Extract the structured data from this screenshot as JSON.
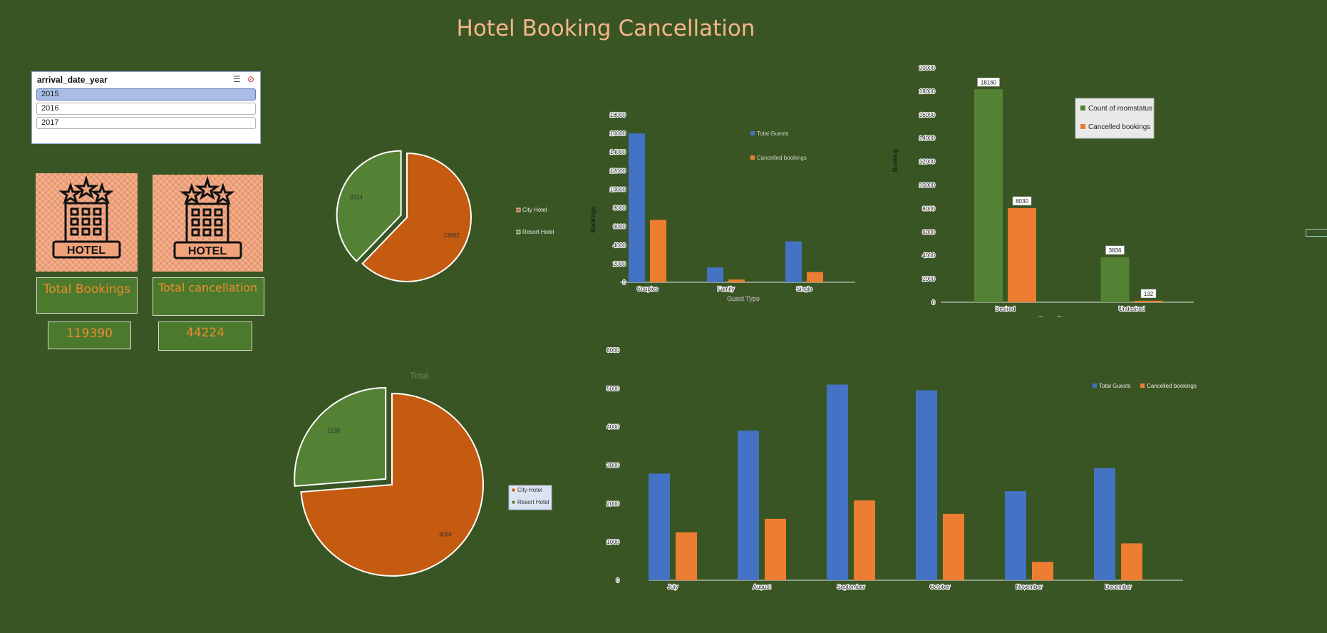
{
  "page": {
    "title": "Hotel Booking Cancellation"
  },
  "slicer": {
    "field": "arrival_date_year",
    "items": [
      "2015",
      "2016",
      "2017"
    ],
    "selected": "2015"
  },
  "kpis": {
    "icon_word": "HOTEL",
    "total_bookings_label": "Total Bookings",
    "total_bookings_value": "119390",
    "total_cancellation_label": "Total cancellation",
    "total_cancellation_value": "44224"
  },
  "colors": {
    "background": "#3a5524",
    "green": "#548235",
    "orange_dark": "#c55a11",
    "blue": "#4472c4",
    "orange": "#ed7d31",
    "title": "#f5b58a"
  },
  "chart_data": [
    {
      "type": "pie",
      "id": "pie_top",
      "title": "",
      "labels": [
        "City Hotel",
        "Resort Hotel"
      ],
      "values": [
        13682,
        8314
      ],
      "legend": [
        "City Hotel",
        "Resort Hotel"
      ]
    },
    {
      "type": "pie",
      "id": "pie_bottom",
      "title": "Total",
      "labels": [
        "City Hotel",
        "Resort Hotel"
      ],
      "values": [
        6004,
        2138
      ],
      "legend": [
        "City Hotel",
        "Resort Hotel"
      ]
    },
    {
      "type": "bar",
      "id": "guest_type",
      "categories": [
        "Couples",
        "Family",
        "Single"
      ],
      "series": [
        {
          "name": "Total Guests",
          "values": [
            16000,
            1600,
            4400
          ]
        },
        {
          "name": "Cancelled bookings",
          "values": [
            6700,
            300,
            1100
          ]
        }
      ],
      "xlabel": "Guest Type",
      "ylabel": "Bookings",
      "ylim": [
        0,
        18000
      ],
      "yticks": [
        "0",
        "2000",
        "4000",
        "6000",
        "8000",
        "10000",
        "12000",
        "14000",
        "16000",
        "18000"
      ]
    },
    {
      "type": "bar",
      "id": "room_type",
      "categories": [
        "Desired",
        "Undesired"
      ],
      "series": [
        {
          "name": "Count of roomstatus",
          "values": [
            18160,
            3836
          ]
        },
        {
          "name": "Cancelled bookings",
          "values": [
            8030,
            132
          ]
        }
      ],
      "data_labels": [
        [
          "18160",
          "3836"
        ],
        [
          "8030",
          "132"
        ]
      ],
      "xlabel": "Room Type",
      "ylabel": "Booking",
      "ylim": [
        0,
        20000
      ],
      "yticks": [
        "0",
        "2000",
        "4000",
        "6000",
        "8000",
        "10000",
        "12000",
        "14000",
        "16000",
        "18000",
        "20000"
      ]
    },
    {
      "type": "bar",
      "id": "monthly",
      "categories": [
        "July",
        "August",
        "September",
        "October",
        "November",
        "December"
      ],
      "series": [
        {
          "name": "Total Guests",
          "values": [
            2780,
            3900,
            5100,
            4950,
            2320,
            2920
          ]
        },
        {
          "name": "Cancelled bookings",
          "values": [
            1250,
            1600,
            2080,
            1730,
            480,
            960
          ]
        }
      ],
      "ylim": [
        0,
        6000
      ],
      "yticks": [
        "0",
        "1000",
        "2000",
        "3000",
        "4000",
        "5000",
        "6000"
      ]
    }
  ]
}
